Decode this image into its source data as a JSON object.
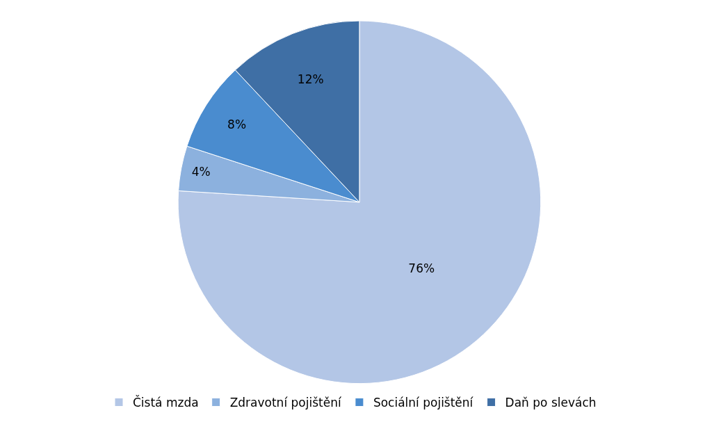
{
  "chart_data": {
    "type": "pie",
    "categories": [
      "Čistá mzda",
      "Zdravotní pojištění",
      "Sociální pojištění",
      "Daň po slevách"
    ],
    "values": [
      76,
      4,
      8,
      12
    ],
    "colors": [
      "#b3c6e6",
      "#8cb1de",
      "#4a8ccf",
      "#3f6fa5"
    ],
    "value_labels": [
      "76%",
      "4%",
      "8%",
      "12%"
    ],
    "legend": "bottom"
  }
}
